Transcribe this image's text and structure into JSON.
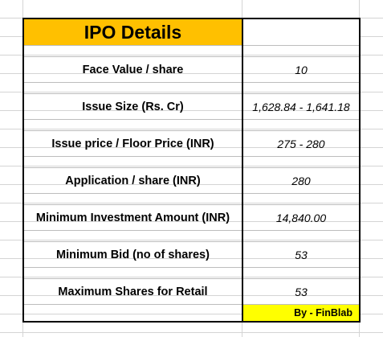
{
  "header": {
    "title": "IPO Details"
  },
  "rows": [
    {
      "label": "Face Value / share",
      "value": "10"
    },
    {
      "label": "Issue Size (Rs. Cr)",
      "value": "1,628.84 - 1,641.18"
    },
    {
      "label": "Issue price / Floor Price (INR)",
      "value": "275 - 280"
    },
    {
      "label": "Application / share (INR)",
      "value": "280"
    },
    {
      "label": "Minimum Investment Amount (INR)",
      "value": "14,840.00"
    },
    {
      "label": "Minimum Bid (no of shares)",
      "value": "53"
    },
    {
      "label": "Maximum Shares for Retail",
      "value": "53"
    }
  ],
  "footer": {
    "credit": "By - FinBlab"
  },
  "colors": {
    "header_fill": "#ffc000",
    "credit_fill": "#ffff00",
    "gridline": "#d4d4d4"
  }
}
